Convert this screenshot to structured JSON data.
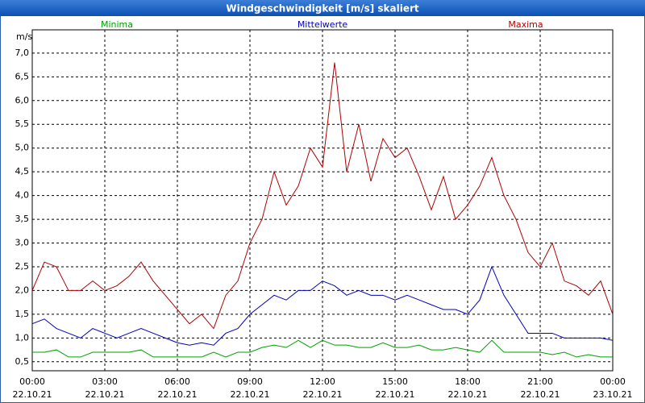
{
  "chart_data": {
    "type": "line",
    "title": "Windgeschwindigkeit [m/s] skaliert",
    "y_label": "m/s",
    "x": [
      0,
      0.5,
      1,
      1.5,
      2,
      2.5,
      3,
      3.5,
      4,
      4.5,
      5,
      5.5,
      6,
      6.5,
      7,
      7.5,
      8,
      8.5,
      9,
      9.5,
      10,
      10.5,
      11,
      11.5,
      12,
      12.5,
      13,
      13.5,
      14,
      14.5,
      15,
      15.5,
      16,
      16.5,
      17,
      17.5,
      18,
      18.5,
      19,
      19.5,
      20,
      20.5,
      21,
      21.5,
      22,
      22.5,
      23,
      23.5,
      24
    ],
    "series": [
      {
        "name": "Minima",
        "color": "#00a000",
        "values": [
          0.7,
          0.7,
          0.75,
          0.6,
          0.6,
          0.7,
          0.7,
          0.7,
          0.7,
          0.75,
          0.6,
          0.6,
          0.6,
          0.6,
          0.6,
          0.7,
          0.6,
          0.7,
          0.7,
          0.8,
          0.85,
          0.8,
          0.95,
          0.8,
          0.95,
          0.85,
          0.85,
          0.8,
          0.8,
          0.9,
          0.8,
          0.8,
          0.85,
          0.75,
          0.75,
          0.8,
          0.75,
          0.7,
          0.95,
          0.7,
          0.7,
          0.7,
          0.7,
          0.65,
          0.7,
          0.6,
          0.65,
          0.6,
          0.6
        ]
      },
      {
        "name": "Mittelwerte",
        "color": "#0000c0",
        "values": [
          1.3,
          1.4,
          1.2,
          1.1,
          1.0,
          1.2,
          1.1,
          1.0,
          1.1,
          1.2,
          1.1,
          1.0,
          0.9,
          0.85,
          0.9,
          0.85,
          1.1,
          1.2,
          1.5,
          1.7,
          1.9,
          1.8,
          2.0,
          2.0,
          2.2,
          2.1,
          1.9,
          2.0,
          1.9,
          1.9,
          1.8,
          1.9,
          1.8,
          1.7,
          1.6,
          1.6,
          1.5,
          1.8,
          2.5,
          1.9,
          1.5,
          1.1,
          1.1,
          1.1,
          1.0,
          1.0,
          1.0,
          1.0,
          0.95
        ]
      },
      {
        "name": "Maxima",
        "color": "#b00000",
        "values": [
          2.0,
          2.6,
          2.5,
          2.0,
          2.0,
          2.2,
          2.0,
          2.1,
          2.3,
          2.6,
          2.2,
          1.9,
          1.6,
          1.3,
          1.5,
          1.2,
          1.9,
          2.2,
          3.0,
          3.5,
          4.5,
          3.8,
          4.2,
          5.0,
          4.6,
          6.8,
          4.5,
          5.5,
          4.3,
          5.2,
          4.8,
          5.0,
          4.4,
          3.7,
          4.4,
          3.5,
          3.8,
          4.2,
          4.8,
          4.0,
          3.5,
          2.8,
          2.5,
          3.0,
          2.2,
          2.1,
          1.9,
          2.2,
          1.5
        ]
      }
    ],
    "xlim": [
      0,
      24
    ],
    "xticks": [
      {
        "value": 0,
        "label": "00:00"
      },
      {
        "value": 3,
        "label": "03:00"
      },
      {
        "value": 6,
        "label": "06:00"
      },
      {
        "value": 9,
        "label": "09:00"
      },
      {
        "value": 12,
        "label": "12:00"
      },
      {
        "value": 15,
        "label": "15:00"
      },
      {
        "value": 18,
        "label": "18:00"
      },
      {
        "value": 21,
        "label": "21:00"
      },
      {
        "value": 24,
        "label": "00:00"
      }
    ],
    "xtick_dates": [
      "22.10.21",
      "22.10.21",
      "22.10.21",
      "22.10.21",
      "22.10.21",
      "22.10.21",
      "22.10.21",
      "22.10.21",
      "23.10.21"
    ],
    "ylim": [
      0.31,
      7.49
    ],
    "yticks": [
      {
        "value": 0.5,
        "label": "0,5"
      },
      {
        "value": 1,
        "label": "1,0"
      },
      {
        "value": 1.5,
        "label": "1,5"
      },
      {
        "value": 2,
        "label": "2,0"
      },
      {
        "value": 2.5,
        "label": "2,5"
      },
      {
        "value": 3,
        "label": "3,0"
      },
      {
        "value": 3.5,
        "label": "3,5"
      },
      {
        "value": 4,
        "label": "4,0"
      },
      {
        "value": 4.5,
        "label": "4,5"
      },
      {
        "value": 5,
        "label": "5,0"
      },
      {
        "value": 5.5,
        "label": "5,5"
      },
      {
        "value": 6,
        "label": "6,0"
      },
      {
        "value": 6.5,
        "label": "6,5"
      },
      {
        "value": 7,
        "label": "7,0"
      }
    ],
    "grid": true
  }
}
